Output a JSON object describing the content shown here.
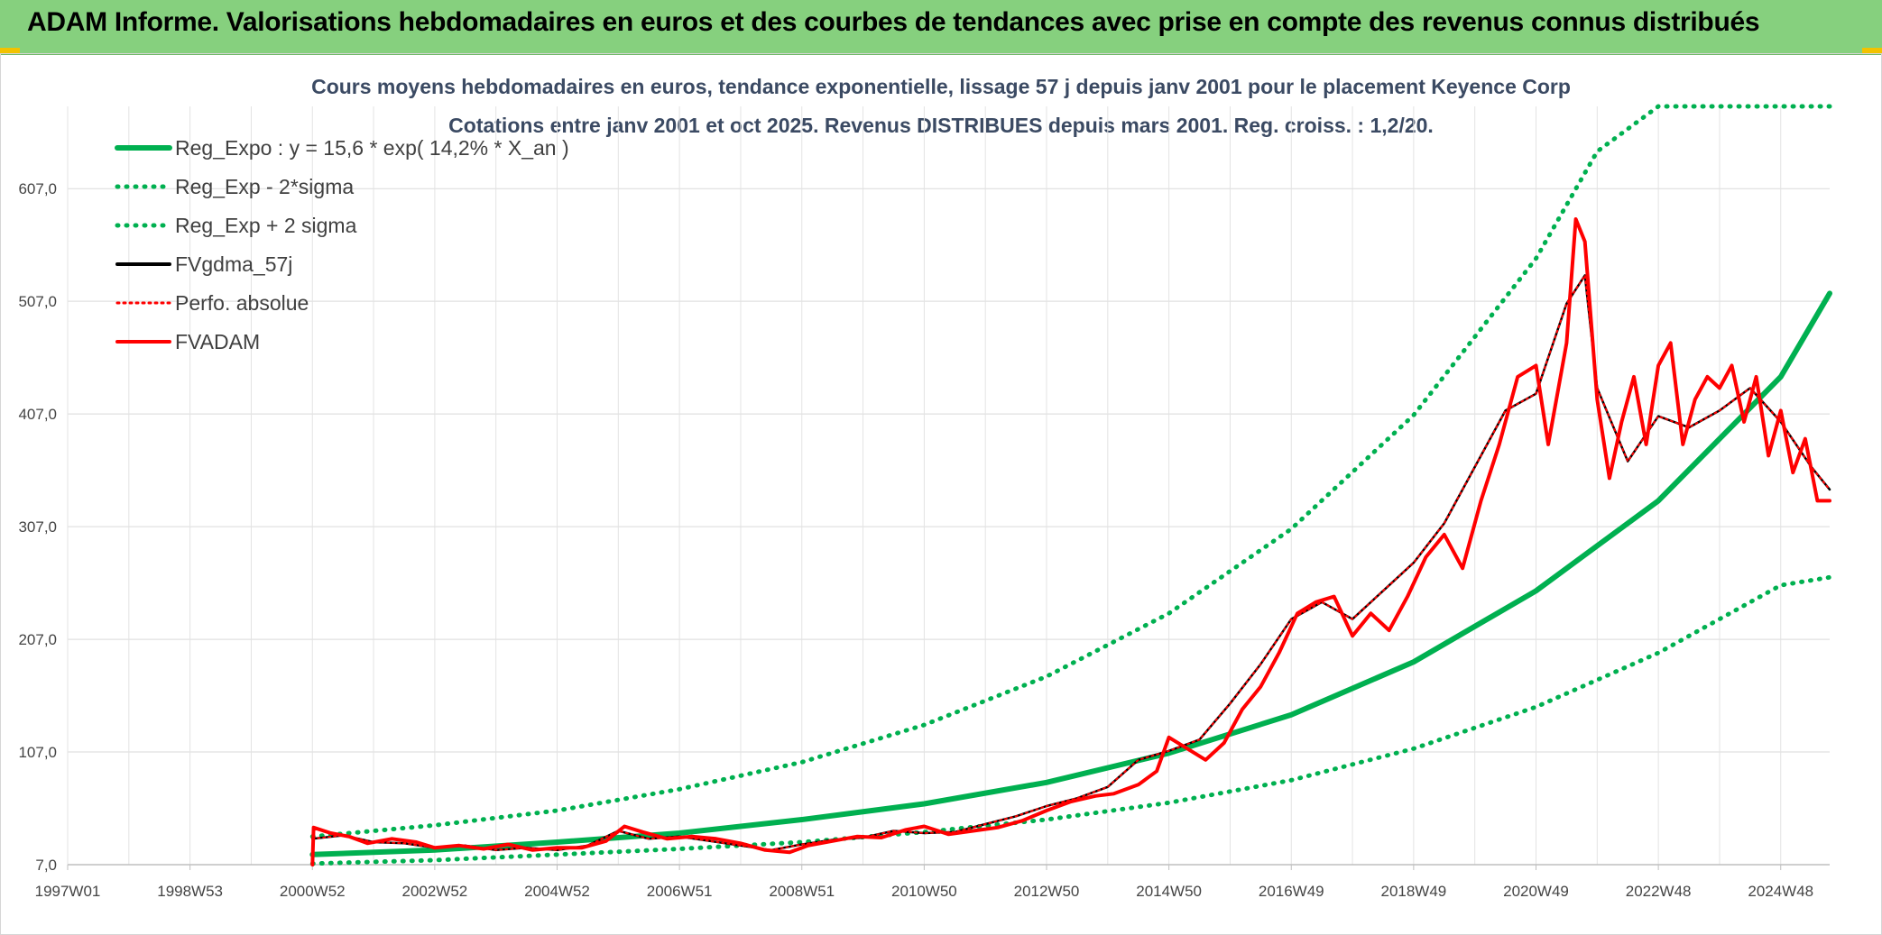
{
  "header": {
    "title": "ADAM Informe. Valorisations hebdomadaires en euros et des courbes de tendances avec prise en compte des revenus connus distribués"
  },
  "colors": {
    "banner": "#86d07e",
    "trend": "#00b050",
    "smooth": "#000000",
    "price": "#ff0000",
    "accent": "#f2c200"
  },
  "chart_data": {
    "type": "line",
    "title": "Cours moyens hebdomadaires en euros, tendance exponentielle, lissage 57 j depuis janv 2001 pour le placement Keyence Corp",
    "subtitle": "Cotations entre janv 2001 et oct 2025. Revenus DISTRIBUES depuis mars 2001. Reg. croiss. : 1,2/20.",
    "xlabel": "",
    "ylabel": "",
    "ylim": [
      7,
      680
    ],
    "xlim": [
      1997.0,
      2025.8
    ],
    "grid": true,
    "legend_position": "top-left",
    "y_ticks": [
      "7,0",
      "107,0",
      "207,0",
      "307,0",
      "407,0",
      "507,0",
      "607,0"
    ],
    "y_tick_values": [
      7,
      107,
      207,
      307,
      407,
      507,
      607
    ],
    "x_ticks": [
      "1997W01",
      "1998W53",
      "2000W52",
      "2002W52",
      "2004W52",
      "2006W51",
      "2008W51",
      "2010W50",
      "2012W50",
      "2014W50",
      "2016W49",
      "2018W49",
      "2020W49",
      "2022W48",
      "2024W48"
    ],
    "x_tick_values": [
      1997.0,
      1999.0,
      2001.0,
      2003.0,
      2005.0,
      2007.0,
      2009.0,
      2011.0,
      2013.0,
      2015.0,
      2017.0,
      2019.0,
      2021.0,
      2023.0,
      2025.0
    ],
    "series": [
      {
        "name": "Reg_Expo : y = 15,6 * exp( 14,2% *  X_an )",
        "style": "solid-thick",
        "color": "#00b050",
        "x": [
          2001.0,
          2003.0,
          2005.0,
          2007.0,
          2009.0,
          2011.0,
          2013.0,
          2015.0,
          2017.0,
          2019.0,
          2021.0,
          2023.0,
          2025.0,
          2025.8
        ],
        "y": [
          16,
          20,
          27,
          35,
          47,
          61,
          80,
          106,
          140,
          187,
          250,
          330,
          440,
          514
        ]
      },
      {
        "name": "Reg_Exp - 2*sigma",
        "style": "dotted",
        "color": "#00b050",
        "x": [
          2001.0,
          2003.0,
          2005.0,
          2007.0,
          2009.0,
          2011.0,
          2013.0,
          2015.0,
          2017.0,
          2019.0,
          2021.0,
          2023.0,
          2025.0,
          2025.8
        ],
        "y": [
          8,
          11,
          16,
          21,
          27,
          36,
          47,
          62,
          82,
          110,
          147,
          195,
          255,
          262
        ]
      },
      {
        "name": "Reg_Exp + 2 sigma",
        "style": "dotted",
        "color": "#00b050",
        "x": [
          2001.0,
          2003.0,
          2005.0,
          2007.0,
          2009.0,
          2011.0,
          2013.0,
          2015.0,
          2017.0,
          2019.0,
          2021.0,
          2022.0,
          2023.0,
          2025.8
        ],
        "y": [
          32,
          42,
          55,
          74,
          98,
          131,
          174,
          230,
          305,
          406,
          545,
          640,
          698,
          698
        ]
      },
      {
        "name": "FVgdma_57j",
        "style": "solid",
        "color": "#000000",
        "x": [
          2001.0,
          2001.5,
          2002.0,
          2002.5,
          2003.0,
          2003.5,
          2004.0,
          2004.5,
          2005.0,
          2005.5,
          2006.0,
          2006.5,
          2007.0,
          2007.5,
          2008.0,
          2008.5,
          2009.0,
          2009.5,
          2010.0,
          2010.5,
          2011.0,
          2011.5,
          2012.0,
          2012.5,
          2013.0,
          2013.5,
          2014.0,
          2014.5,
          2015.0,
          2015.5,
          2016.0,
          2016.5,
          2017.0,
          2017.5,
          2018.0,
          2018.5,
          2019.0,
          2019.5,
          2020.0,
          2020.5,
          2021.0,
          2021.5,
          2021.8,
          2022.0,
          2022.5,
          2023.0,
          2023.5,
          2024.0,
          2024.5,
          2025.0,
          2025.5,
          2025.8
        ],
        "y": [
          30,
          33,
          27,
          26,
          22,
          24,
          20,
          22,
          20,
          24,
          37,
          30,
          32,
          28,
          24,
          20,
          25,
          29,
          31,
          37,
          35,
          36,
          43,
          50,
          59,
          66,
          76,
          100,
          108,
          118,
          150,
          185,
          225,
          240,
          225,
          250,
          275,
          310,
          360,
          410,
          425,
          505,
          530,
          430,
          365,
          405,
          395,
          410,
          430,
          400,
          360,
          340
        ]
      },
      {
        "name": "Perfo. absolue",
        "style": "dotted",
        "color": "#ff0000",
        "x": [
          2001.0,
          2001.5,
          2002.0,
          2002.5,
          2003.0,
          2003.5,
          2004.0,
          2004.5,
          2005.0,
          2005.5,
          2006.0,
          2006.5,
          2007.0,
          2007.5,
          2008.0,
          2008.5,
          2009.0,
          2009.5,
          2010.0,
          2010.5,
          2011.0,
          2011.5,
          2012.0,
          2012.5,
          2013.0,
          2013.5,
          2014.0,
          2014.5,
          2015.0,
          2015.5,
          2016.0,
          2016.5,
          2017.0,
          2017.5,
          2018.0,
          2018.5,
          2019.0,
          2019.5,
          2020.0,
          2020.5,
          2021.0,
          2021.5,
          2021.8,
          2022.0,
          2022.5,
          2023.0,
          2023.5,
          2024.0,
          2024.5,
          2025.0,
          2025.5,
          2025.8
        ],
        "y": [
          30,
          33,
          27,
          26,
          22,
          24,
          20,
          22,
          20,
          24,
          37,
          30,
          32,
          28,
          24,
          20,
          25,
          29,
          31,
          37,
          35,
          36,
          43,
          50,
          59,
          66,
          76,
          100,
          108,
          118,
          150,
          185,
          225,
          240,
          225,
          250,
          275,
          310,
          360,
          410,
          425,
          505,
          530,
          430,
          365,
          405,
          395,
          410,
          430,
          400,
          360,
          340
        ]
      },
      {
        "name": "FVADAM",
        "style": "solid-thick",
        "color": "#ff0000",
        "x": [
          2001.0,
          2001.02,
          2001.3,
          2001.6,
          2001.9,
          2002.3,
          2002.7,
          2003.0,
          2003.4,
          2003.8,
          2004.2,
          2004.6,
          2005.0,
          2005.4,
          2005.8,
          2006.1,
          2006.4,
          2006.8,
          2007.2,
          2007.6,
          2008.0,
          2008.4,
          2008.8,
          2009.1,
          2009.5,
          2009.9,
          2010.3,
          2010.7,
          2011.0,
          2011.4,
          2011.8,
          2012.2,
          2012.6,
          2013.0,
          2013.4,
          2013.8,
          2014.1,
          2014.5,
          2014.8,
          2015.0,
          2015.3,
          2015.6,
          2015.9,
          2016.2,
          2016.5,
          2016.8,
          2017.1,
          2017.4,
          2017.7,
          2018.0,
          2018.3,
          2018.6,
          2018.9,
          2019.2,
          2019.5,
          2019.8,
          2020.1,
          2020.4,
          2020.7,
          2021.0,
          2021.2,
          2021.5,
          2021.65,
          2021.8,
          2022.0,
          2022.2,
          2022.4,
          2022.6,
          2022.8,
          2023.0,
          2023.2,
          2023.4,
          2023.6,
          2023.8,
          2024.0,
          2024.2,
          2024.4,
          2024.6,
          2024.8,
          2025.0,
          2025.2,
          2025.4,
          2025.6,
          2025.8
        ],
        "y": [
          7,
          40,
          35,
          32,
          26,
          30,
          27,
          22,
          24,
          21,
          25,
          20,
          22,
          22,
          28,
          41,
          36,
          30,
          32,
          30,
          26,
          20,
          18,
          24,
          28,
          32,
          31,
          38,
          41,
          34,
          37,
          40,
          46,
          55,
          63,
          68,
          70,
          78,
          90,
          120,
          110,
          100,
          115,
          145,
          165,
          195,
          230,
          240,
          245,
          210,
          230,
          215,
          245,
          280,
          300,
          270,
          330,
          380,
          440,
          450,
          380,
          470,
          580,
          560,
          420,
          350,
          400,
          440,
          380,
          450,
          470,
          380,
          420,
          440,
          430,
          450,
          400,
          440,
          370,
          410,
          355,
          385,
          330,
          330
        ]
      }
    ]
  }
}
